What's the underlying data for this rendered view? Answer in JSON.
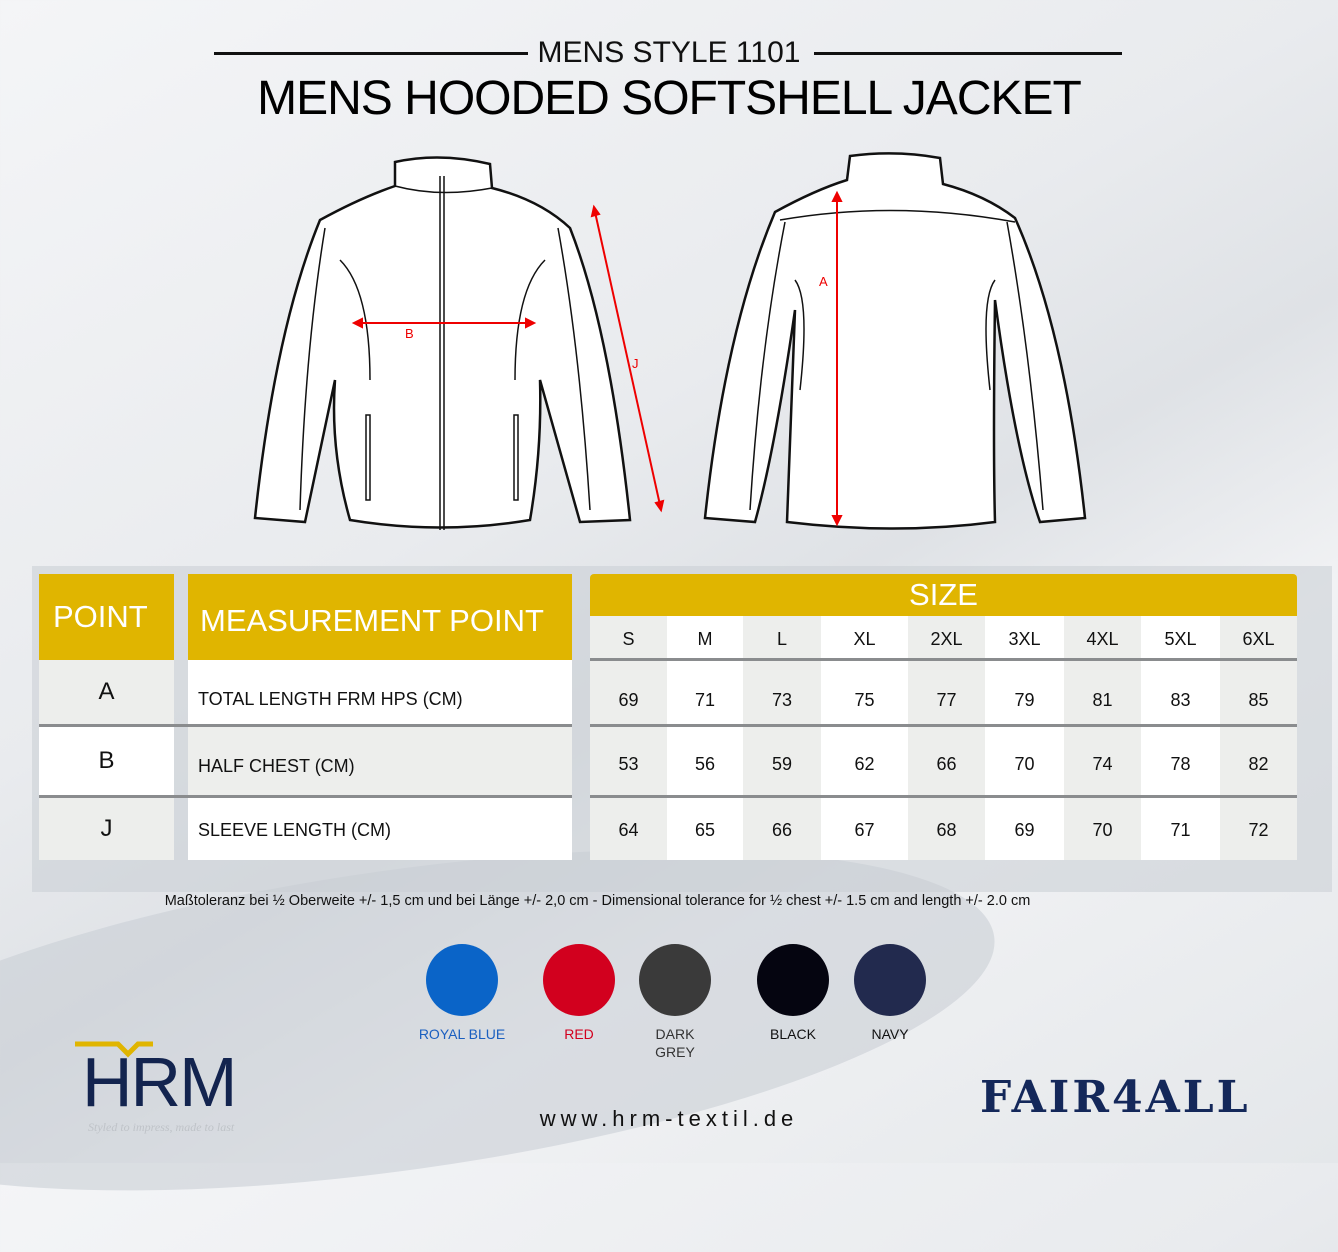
{
  "header": {
    "subtitle": "MENS STYLE 1101",
    "title": "MENS HOODED SOFTSHELL JACKET"
  },
  "diagram_labels": {
    "a": "A",
    "b": "B",
    "j": "J"
  },
  "table": {
    "point_header": "POINT",
    "measurement_header": "MEASUREMENT POINT",
    "size_header": "SIZE",
    "sizes": [
      "S",
      "M",
      "L",
      "XL",
      "2XL",
      "3XL",
      "4XL",
      "5XL",
      "6XL"
    ],
    "rows": [
      {
        "point": "A",
        "label": "TOTAL LENGTH FRM HPS (CM)",
        "values": [
          "69",
          "71",
          "73",
          "75",
          "77",
          "79",
          "81",
          "83",
          "85"
        ]
      },
      {
        "point": "B",
        "label": "HALF CHEST (CM)",
        "values": [
          "53",
          "56",
          "59",
          "62",
          "66",
          "70",
          "74",
          "78",
          "82"
        ]
      },
      {
        "point": "J",
        "label": "SLEEVE LENGTH (CM)",
        "values": [
          "64",
          "65",
          "66",
          "67",
          "68",
          "69",
          "70",
          "71",
          "72"
        ]
      }
    ]
  },
  "tolerance_note": "Maßtoleranz bei ½ Oberweite +/- 1,5 cm und bei Länge +/- 2,0 cm - Dimensional tolerance for ½ chest +/- 1.5 cm and length +/- 2.0 cm",
  "colors": [
    {
      "name": "ROYAL BLUE",
      "hex": "#0a64c8",
      "label_color": "#1a5fc0"
    },
    {
      "name": "RED",
      "hex": "#d2001e",
      "label_color": "#d2001e"
    },
    {
      "name": "DARK GREY",
      "hex": "#3a3a3a",
      "label_color": "#333333"
    },
    {
      "name": "BLACK",
      "hex": "#050510",
      "label_color": "#111111"
    },
    {
      "name": "NAVY",
      "hex": "#222a4e",
      "label_color": "#111111"
    }
  ],
  "logo": {
    "brand": "HRM",
    "tagline": "Styled to impress, made to last"
  },
  "website": "www.hrm-textil.de",
  "partner_logo": "FAIR4ALL",
  "accent_color": "#e0b500"
}
